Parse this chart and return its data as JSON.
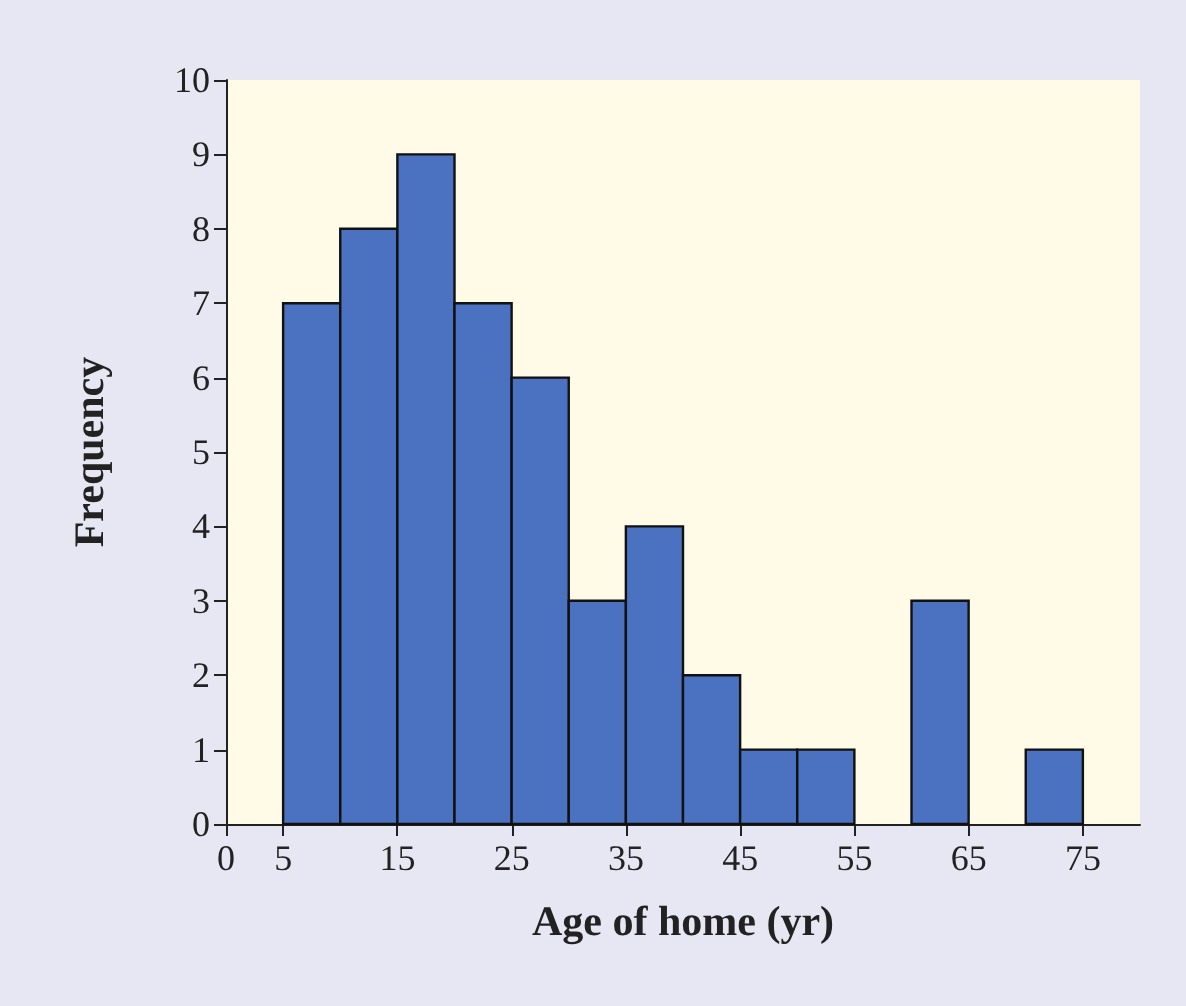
{
  "chart_data": {
    "type": "histogram",
    "xlabel": "Age of home (yr)",
    "ylabel": "Frequency",
    "bins": [
      5,
      10,
      15,
      20,
      25,
      30,
      35,
      40,
      45,
      50,
      55,
      60,
      65,
      70,
      75
    ],
    "values": [
      7,
      8,
      9,
      7,
      6,
      3,
      4,
      2,
      1,
      1,
      0,
      3,
      0,
      1
    ],
    "color": "#4a72c0",
    "xlim": [
      0,
      80
    ],
    "xticks": [
      0,
      5,
      15,
      25,
      35,
      45,
      55,
      65,
      75
    ],
    "ylim": [
      0,
      10
    ],
    "yticks": [
      0,
      1,
      2,
      3,
      4,
      5,
      6,
      7,
      8,
      9,
      10
    ],
    "grid": false
  }
}
